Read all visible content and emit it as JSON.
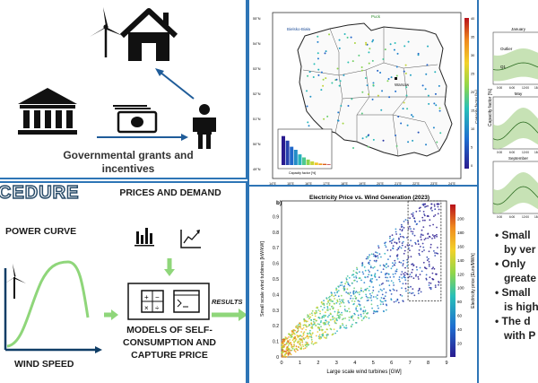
{
  "grants": {
    "caption_line1": "Governmental grants and",
    "caption_line2": "incentives"
  },
  "procedure": {
    "title": "CEDURE",
    "power_curve_label": "POWER CURVE",
    "wind_speed_label": "WIND SPEED",
    "prices_label": "PRICES AND DEMAND",
    "results_label": "RESULTS",
    "models_line1": "MODELS OF SELF-",
    "models_line2": "CONSUMPTION AND",
    "models_line3": "CAPTURE PRICE"
  },
  "map": {
    "place_top": "Puck",
    "place_left": "Bielsko-Biała",
    "city": "Warsaw",
    "colorbar_label": "Capacity factor [%]",
    "colorbar_ticks": [
      "40",
      "35",
      "30",
      "25",
      "20",
      "15",
      "10",
      "5",
      "0"
    ],
    "lat_ticks": [
      "55°N",
      "54°N",
      "53°N",
      "52°N",
      "51°N",
      "50°N",
      "49°N"
    ],
    "lon_ticks": [
      "14°E",
      "15°E",
      "16°E",
      "17°E",
      "18°E",
      "19°E",
      "20°E",
      "21°E",
      "22°E",
      "23°E",
      "24°E"
    ],
    "inset_xlabel": "Capacity factor [%]",
    "inset_ylabel": "Count"
  },
  "seasonal": {
    "months": [
      "January",
      "May",
      "September"
    ],
    "ylabel": "Capacity factor [%]",
    "legend_outlier": "Outlier",
    "legend_q": "Q1",
    "xticks": [
      "0:00",
      "6:00",
      "12:00",
      "18:00"
    ]
  },
  "scatter": {
    "panel_tag": "b)",
    "colorbar_label": "Electricity price [Euro/MWh]",
    "colorbar_ticks": [
      "200",
      "180",
      "160",
      "140",
      "120",
      "100",
      "80",
      "60",
      "40",
      "20"
    ]
  },
  "chart_data": {
    "type": "scatter",
    "title": "Electricity Price vs. Wind Generation (2023)",
    "xlabel": "Large scale wind turbines [GW]",
    "ylabel": "Small scale wind turbines [kW/kW]",
    "xlim": [
      0,
      9
    ],
    "ylim": [
      0,
      1
    ],
    "xticks": [
      "0",
      "1",
      "2",
      "3",
      "4",
      "5",
      "6",
      "7",
      "8",
      "9"
    ],
    "yticks": [
      "0",
      "0.1",
      "0.2",
      "0.3",
      "0.4",
      "0.5",
      "0.6",
      "0.7",
      "0.8",
      "0.9"
    ],
    "colorbar": {
      "label": "Electricity price [Euro/MWh]",
      "range": [
        0,
        220
      ]
    },
    "highlight_box": {
      "x": [
        6.9,
        8.7
      ],
      "y": [
        0.36,
        1.0
      ]
    },
    "legend": "none",
    "grid": false
  },
  "bullets": [
    "Small",
    "by ver",
    "Only",
    "greate",
    "Small",
    "is high",
    "The d",
    "with P"
  ]
}
